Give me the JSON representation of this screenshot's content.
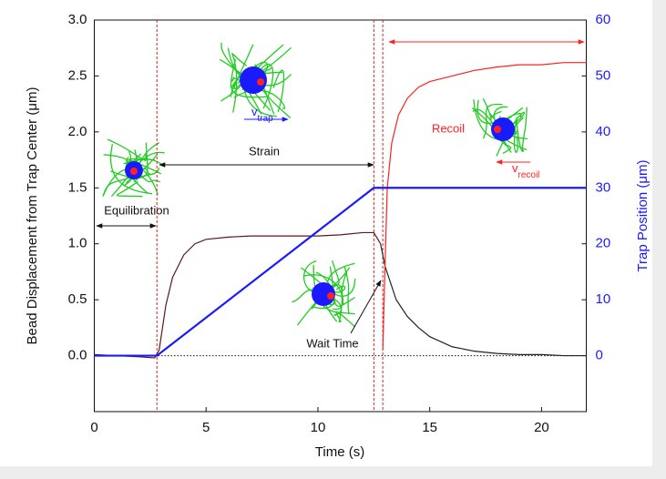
{
  "chart_data": {
    "type": "line",
    "xlabel": "Time (s)",
    "ylabel": "Bead Displacement from Trap Center (μm)",
    "y2label": "Trap Position (μm)",
    "xlim": [
      0,
      22
    ],
    "ylim": [
      -0.5,
      3.0
    ],
    "y2lim": [
      -10,
      60
    ],
    "xticks": [
      0,
      5,
      10,
      15,
      20
    ],
    "yticks": [
      {
        "value": 0,
        "label": "0.0"
      },
      0.5,
      {
        "value": 1,
        "label": "1.0"
      },
      1.5,
      {
        "value": 2,
        "label": "2.0"
      },
      2.5,
      {
        "value": 3,
        "label": "3.0"
      }
    ],
    "y2ticks": [
      0,
      10,
      20,
      30,
      40,
      50,
      60
    ],
    "y2color": "#1a1aff",
    "vlines": [
      2.8,
      12.5,
      12.9
    ],
    "vline_color": "#e02020",
    "series": [
      {
        "color": "#5a1a1a",
        "x": [
          0,
          1,
          2,
          2.7,
          2.9,
          3.2,
          3.5,
          4,
          4.5,
          5,
          6,
          7,
          8,
          9,
          10,
          11,
          12,
          12.5,
          12.8
        ],
        "values": [
          0.01,
          0,
          -0.01,
          -0.02,
          0.05,
          0.45,
          0.7,
          0.9,
          1.0,
          1.04,
          1.06,
          1.07,
          1.07,
          1.07,
          1.07,
          1.08,
          1.1,
          1.1,
          1.0
        ]
      },
      {
        "color": "#222222",
        "x": [
          12.8,
          13,
          13.5,
          14,
          14.5,
          15,
          16,
          17,
          18,
          19,
          20,
          21,
          22
        ],
        "values": [
          1.0,
          0.8,
          0.5,
          0.35,
          0.25,
          0.17,
          0.08,
          0.04,
          0.02,
          0.01,
          0.01,
          0,
          0
        ]
      },
      {
        "color": "#ff2020",
        "x": [
          12.9,
          13,
          13.1,
          13.3,
          13.6,
          14,
          14.5,
          15,
          16,
          17,
          18,
          19,
          20,
          21,
          22
        ],
        "values": [
          0.05,
          0.8,
          1.5,
          1.9,
          2.15,
          2.3,
          2.4,
          2.45,
          2.5,
          2.55,
          2.58,
          2.6,
          2.6,
          2.62,
          2.62
        ]
      },
      {
        "color": "#1a1aff",
        "axis": "y2",
        "x": [
          0,
          2.8,
          12.5,
          22
        ],
        "values": [
          0,
          0,
          30,
          30
        ]
      }
    ],
    "annotations": {
      "equilibration": "Equilibration",
      "strain": "Strain",
      "recoil": "Recoil",
      "wait_time": "Wait Time",
      "v_trap": {
        "symbol": "v",
        "subscript": "trap"
      },
      "v_recoil": {
        "symbol": "v",
        "subscript": "recoil"
      }
    }
  }
}
